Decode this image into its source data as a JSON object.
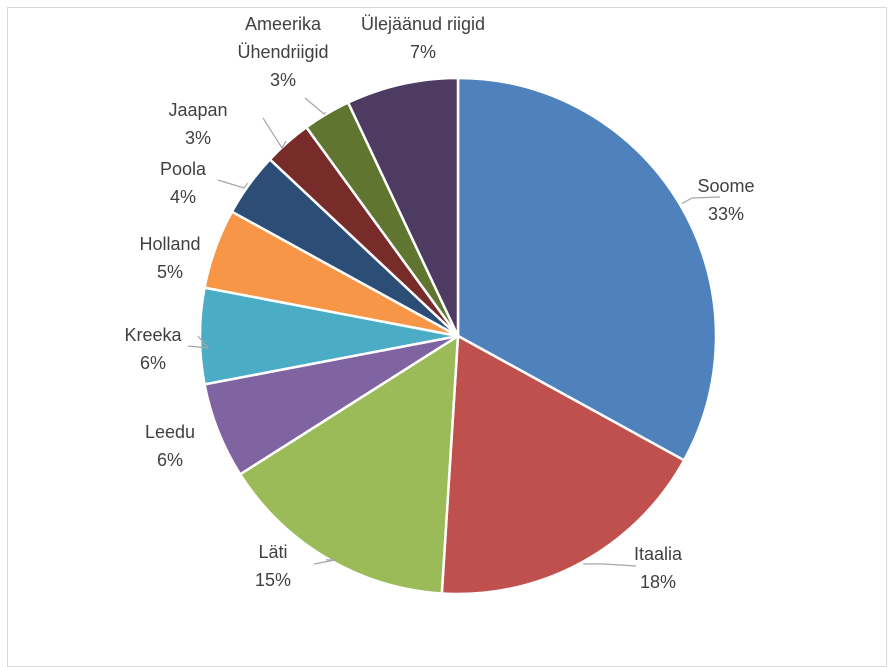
{
  "chart_data": {
    "type": "pie",
    "title": "",
    "unit": "%",
    "slices": [
      {
        "label": "Soome",
        "value": 33,
        "percent_label": "33%",
        "color": "#4f81bd"
      },
      {
        "label": "Itaalia",
        "value": 18,
        "percent_label": "18%",
        "color": "#c0504d"
      },
      {
        "label": "Läti",
        "value": 15,
        "percent_label": "15%",
        "color": "#9bbb59"
      },
      {
        "label": "Leedu",
        "value": 6,
        "percent_label": "6%",
        "color": "#8064a2"
      },
      {
        "label": "Kreeka",
        "value": 6,
        "percent_label": "6%",
        "color": "#4bacc6"
      },
      {
        "label": "Holland",
        "value": 5,
        "percent_label": "5%",
        "color": "#f79646"
      },
      {
        "label": "Poola",
        "value": 4,
        "percent_label": "4%",
        "color": "#2c4d75"
      },
      {
        "label": "Jaapan",
        "value": 3,
        "percent_label": "3%",
        "color": "#772c2a"
      },
      {
        "label": "Ameerika Ühendriigid",
        "value": 3,
        "percent_label": "3%",
        "color": "#5f7530"
      },
      {
        "label": "Ülejäänud riigid",
        "value": 7,
        "percent_label": "7%",
        "color": "#4d3b62"
      }
    ],
    "legend": "none",
    "data_labels": "outside with leader lines"
  }
}
